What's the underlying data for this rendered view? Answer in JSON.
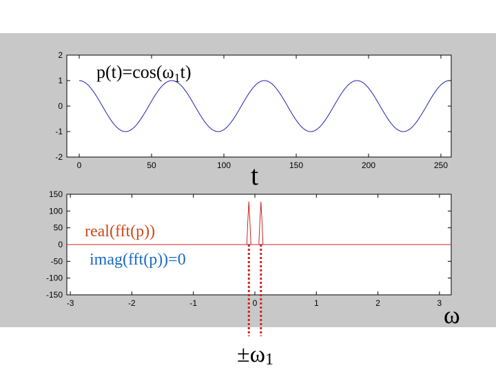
{
  "annotations": {
    "top_formula_prefix": "p(t)=cos(ω",
    "top_formula_sub": "1",
    "top_formula_suffix": "t)",
    "t_label": "t",
    "real_label": "real(fft(p))",
    "imag_label": "imag(fft(p))=0",
    "omega_label": "ω",
    "pm_omega_prefix": "±ω",
    "pm_omega_sub": "1"
  },
  "colors": {
    "panel_bg": "#c8c8c8",
    "plot_bg": "#ffffff",
    "cos_line": "#1f1fb0",
    "real_line": "#cc2222",
    "imag_line": "#1f1fb0",
    "real_label": "#cc4a1a",
    "imag_label": "#1a6abf",
    "marker": "#cc2222"
  },
  "chart_data": [
    {
      "type": "line",
      "title": "p(t)=cos(ω1t)",
      "xlabel": "t",
      "ylabel": "",
      "xlim": [
        0,
        250
      ],
      "ylim": [
        -2,
        2
      ],
      "xticks": [
        "0",
        "50",
        "100",
        "150",
        "200",
        "250"
      ],
      "yticks": [
        "-2",
        "-1",
        "0",
        "1",
        "2"
      ],
      "xtick_values": [
        0,
        50,
        100,
        150,
        200,
        250
      ],
      "ytick_values": [
        -2,
        -1,
        0,
        1,
        2
      ],
      "grid": false,
      "series": [
        {
          "amplitude": 1,
          "period": 64,
          "x_range": [
            0,
            255
          ]
        }
      ]
    },
    {
      "type": "line",
      "title": "",
      "xlabel": "ω",
      "ylabel": "",
      "xlim": [
        -3.14,
        3.14
      ],
      "ylim": [
        -150,
        150
      ],
      "xticks": [
        "-3",
        "-2",
        "-1",
        "0",
        "1",
        "2",
        "3"
      ],
      "yticks": [
        "-150",
        "-100",
        "-50",
        "0",
        "50",
        "100",
        "150"
      ],
      "xtick_values": [
        -3,
        -2,
        -1,
        0,
        1,
        2,
        3
      ],
      "ytick_values": [
        -150,
        -100,
        -50,
        0,
        50,
        100,
        150
      ],
      "grid": false,
      "series": [
        {
          "name": "real(fft(p))",
          "peaks": [
            {
              "x": -0.098,
              "y": 128
            },
            {
              "x": 0.098,
              "y": 128
            }
          ]
        },
        {
          "name": "imag(fft(p))=0",
          "value": 0
        }
      ]
    }
  ]
}
